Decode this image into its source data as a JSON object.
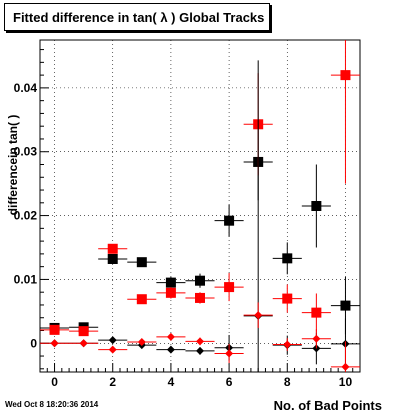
{
  "header": {
    "title": "Fitted difference in tan( λ )  Global Tracks",
    "timestamp": "Wed Oct  8 18:20:36 2014"
  },
  "chart_data": {
    "type": "scatter",
    "title": "Fitted difference in tan( λ )  Global Tracks",
    "xlabel": "No. of Bad Points",
    "ylabel": "differencein tan( )",
    "xlim": [
      -0.5,
      10.5
    ],
    "ylim": [
      -0.0045,
      0.0475
    ],
    "x_ticks": [
      0,
      2,
      4,
      6,
      8,
      10
    ],
    "y_ticks": [
      {
        "value": 0,
        "label": "0"
      },
      {
        "value": 0.01,
        "label": "0.01"
      },
      {
        "value": 0.02,
        "label": "0.02"
      },
      {
        "value": 0.03,
        "label": "0.03"
      },
      {
        "value": 0.04,
        "label": "0.04"
      }
    ],
    "grid": true,
    "series": [
      {
        "marker": "square",
        "color": "#000000",
        "points": [
          {
            "x": 0,
            "y": 0.0024,
            "yerr": 0.0003
          },
          {
            "x": 1,
            "y": 0.0025,
            "yerr": 0.0003
          },
          {
            "x": 2,
            "y": 0.0132,
            "yerr": 0.0007
          },
          {
            "x": 3,
            "y": 0.0127,
            "yerr": 0.0007
          },
          {
            "x": 4,
            "y": 0.0095,
            "yerr": 0.0009
          },
          {
            "x": 5,
            "y": 0.0098,
            "yerr": 0.0011
          },
          {
            "x": 6,
            "y": 0.0192,
            "yerr": 0.0025
          },
          {
            "x": 7,
            "y": 0.0284,
            "yerr": 0.006
          },
          {
            "x": 8,
            "y": 0.0133,
            "yerr": 0.0025
          },
          {
            "x": 9,
            "y": 0.0215,
            "yerr": 0.0065
          },
          {
            "x": 10,
            "y": 0.0059,
            "yerr": 0.0045
          }
        ]
      },
      {
        "marker": "square",
        "color": "#ff0000",
        "points": [
          {
            "x": 0,
            "y": 0.0021,
            "yerr": 0.0003
          },
          {
            "x": 1,
            "y": 0.0019,
            "yerr": 0.0003
          },
          {
            "x": 2,
            "y": 0.0148,
            "yerr": 0.0007
          },
          {
            "x": 3,
            "y": 0.0069,
            "yerr": 0.0005
          },
          {
            "x": 4,
            "y": 0.0079,
            "yerr": 0.0009
          },
          {
            "x": 5,
            "y": 0.0071,
            "yerr": 0.0009
          },
          {
            "x": 6,
            "y": 0.0088,
            "yerr": 0.0022
          },
          {
            "x": 7,
            "y": 0.0343,
            "yerr": 0.008
          },
          {
            "x": 8,
            "y": 0.007,
            "yerr": 0.0022
          },
          {
            "x": 9,
            "y": 0.0048,
            "yerr": 0.003
          },
          {
            "x": 10,
            "y": 0.042,
            "yerr": 0.017
          }
        ]
      },
      {
        "marker": "diamond",
        "color": "#000000",
        "points": [
          {
            "x": 0,
            "y": 0.0,
            "yerr": 0.0002
          },
          {
            "x": 1,
            "y": 0.0,
            "yerr": 0.0002
          },
          {
            "x": 2,
            "y": 0.0005,
            "yerr": 0.0004
          },
          {
            "x": 3,
            "y": -0.0003,
            "yerr": 0.0004
          },
          {
            "x": 4,
            "y": -0.001,
            "yerr": 0.0005
          },
          {
            "x": 5,
            "y": -0.0012,
            "yerr": 0.0006
          },
          {
            "x": 6,
            "y": -0.0007,
            "yerr": 0.002
          },
          {
            "x": 7,
            "y": 0.0043,
            "yerr": 0.04
          },
          {
            "x": 8,
            "y": -0.0003,
            "yerr": 0.0015
          },
          {
            "x": 9,
            "y": -0.0008,
            "yerr": 0.0025
          },
          {
            "x": 10,
            "y": -0.0001,
            "yerr": 0.004
          }
        ]
      },
      {
        "marker": "diamond",
        "color": "#ff0000",
        "points": [
          {
            "x": 0,
            "y": 0.0,
            "yerr": 0.0002
          },
          {
            "x": 1,
            "y": 0.0,
            "yerr": 0.0002
          },
          {
            "x": 2,
            "y": -0.001,
            "yerr": 0.0004
          },
          {
            "x": 3,
            "y": 0.0002,
            "yerr": 0.0004
          },
          {
            "x": 4,
            "y": 0.001,
            "yerr": 0.0005
          },
          {
            "x": 5,
            "y": 0.0003,
            "yerr": 0.0006
          },
          {
            "x": 6,
            "y": -0.0016,
            "yerr": 0.0015
          },
          {
            "x": 7,
            "y": 0.0044,
            "yerr": 0.002
          },
          {
            "x": 8,
            "y": -0.0002,
            "yerr": 0.001
          },
          {
            "x": 9,
            "y": 0.0007,
            "yerr": 0.0015
          },
          {
            "x": 10,
            "y": -0.0037,
            "yerr": 0.004
          }
        ]
      }
    ]
  }
}
